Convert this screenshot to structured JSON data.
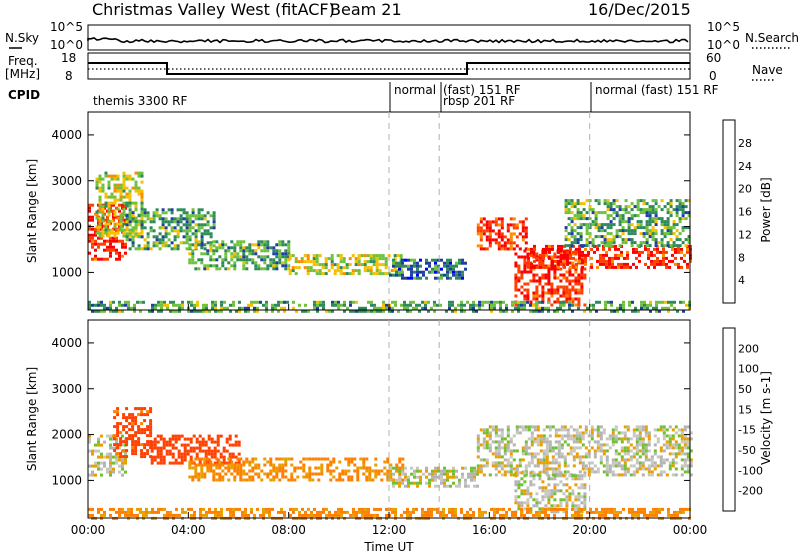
{
  "header": {
    "title": "Christmas Valley West (fitACF)",
    "beam": "Beam 21",
    "date": "16/Dec/2015"
  },
  "noise_panel": {
    "left_label": "N.Sky",
    "right_label": "N.Search",
    "left_ticks": [
      "10^5",
      "10^0"
    ],
    "right_ticks": [
      "10^5",
      "10^0"
    ]
  },
  "freq_panel": {
    "left_label_1": "Freq.",
    "left_label_2": "[MHz]",
    "right_label": "Nave",
    "left_ticks": [
      "18",
      "8"
    ],
    "right_ticks": [
      "60",
      "0"
    ]
  },
  "cpid": {
    "label": "CPID",
    "segments": [
      {
        "start": 0,
        "end": 12,
        "text": "themis 3300 RF"
      },
      {
        "start": 12,
        "end": 14,
        "text": "normal"
      },
      {
        "start": 14,
        "end": 20,
        "text": "(fast) 151 RF"
      },
      {
        "start": 14,
        "end": 20,
        "text": "rbsp 201 RF"
      },
      {
        "start": 20,
        "end": 24,
        "text": "normal (fast) 151 RF"
      }
    ]
  },
  "colors": {
    "power": [
      "#0000ff",
      "#1f3fa0",
      "#2f8a5a",
      "#6fc03c",
      "#f4c000",
      "#ff8a00",
      "#ff4000",
      "#ff0000"
    ],
    "velocity": [
      "#2020a0",
      "#2a6a6a",
      "#3a9a3a",
      "#70c030",
      "#b4b4b4",
      "#c8c8c0",
      "#e8a000",
      "#ff8000",
      "#ff4000",
      "#ff0000"
    ]
  },
  "chart_data": [
    {
      "type": "heatmap",
      "title": "Power",
      "xlabel": "Time UT",
      "ylabel": "Slant Range [km]",
      "colorbar_label": "Power [dB]",
      "colorbar_ticks": [
        "28",
        "24",
        "20",
        "16",
        "12",
        "8",
        "4"
      ],
      "xlim": [
        0,
        24
      ],
      "ylim": [
        180,
        4500
      ],
      "xticks": [
        "00:00",
        "04:00",
        "08:00",
        "12:00",
        "16:00",
        "20:00",
        "00:00"
      ],
      "yticks": [
        1000,
        2000,
        3000,
        4000
      ],
      "regions": [
        {
          "t0": 0.0,
          "t1": 1.5,
          "r0": 1300,
          "r1": 2500,
          "value": 28
        },
        {
          "t0": 0.3,
          "t1": 2.2,
          "r0": 1800,
          "r1": 3200,
          "value": 16
        },
        {
          "t0": 1.5,
          "t1": 5.0,
          "r0": 1500,
          "r1": 2400,
          "value": 12
        },
        {
          "t0": 4.0,
          "t1": 8.0,
          "r0": 1100,
          "r1": 1700,
          "value": 12
        },
        {
          "t0": 8.0,
          "t1": 12.5,
          "r0": 1000,
          "r1": 1400,
          "value": 16
        },
        {
          "t0": 12.0,
          "t1": 15.0,
          "r0": 900,
          "r1": 1300,
          "value": 8
        },
        {
          "t0": 15.5,
          "t1": 17.5,
          "r0": 1500,
          "r1": 2200,
          "value": 28
        },
        {
          "t0": 17.0,
          "t1": 19.8,
          "r0": 300,
          "r1": 1500,
          "value": 28
        },
        {
          "t0": 17.5,
          "t1": 24.0,
          "r0": 1100,
          "r1": 1600,
          "value": 28
        },
        {
          "t0": 19.0,
          "t1": 24.0,
          "r0": 1600,
          "r1": 2600,
          "value": 12
        },
        {
          "t0": 0.0,
          "t1": 24.0,
          "r0": 180,
          "r1": 380,
          "value": 12
        }
      ]
    },
    {
      "type": "heatmap",
      "title": "Velocity",
      "xlabel": "Time UT",
      "ylabel": "Slant Range [km]",
      "colorbar_label": "Velocity [m s-1]",
      "colorbar_ticks": [
        "200",
        "100",
        "50",
        "15",
        "-15",
        "-50",
        "-100",
        "-200"
      ],
      "xlim": [
        0,
        24
      ],
      "ylim": [
        180,
        4500
      ],
      "xticks": [
        "00:00",
        "04:00",
        "08:00",
        "12:00",
        "16:00",
        "20:00",
        "00:00"
      ],
      "yticks": [
        1000,
        2000,
        3000,
        4000
      ],
      "regions": [
        {
          "t0": 0.0,
          "t1": 1.5,
          "r0": 1100,
          "r1": 2000,
          "value": 0
        },
        {
          "t0": 1.0,
          "t1": 2.5,
          "r0": 1500,
          "r1": 2600,
          "value": -120
        },
        {
          "t0": 2.5,
          "t1": 6.0,
          "r0": 1400,
          "r1": 2000,
          "value": -150
        },
        {
          "t0": 4.0,
          "t1": 12.5,
          "r0": 1000,
          "r1": 1500,
          "value": -60
        },
        {
          "t0": 12.0,
          "t1": 15.5,
          "r0": 900,
          "r1": 1300,
          "value": 0
        },
        {
          "t0": 15.5,
          "t1": 24.0,
          "r0": 1100,
          "r1": 2200,
          "value": 0
        },
        {
          "t0": 17.0,
          "t1": 19.8,
          "r0": 300,
          "r1": 1200,
          "value": 0
        },
        {
          "t0": 0.0,
          "t1": 24.0,
          "r0": 180,
          "r1": 400,
          "value": -60
        }
      ]
    }
  ]
}
